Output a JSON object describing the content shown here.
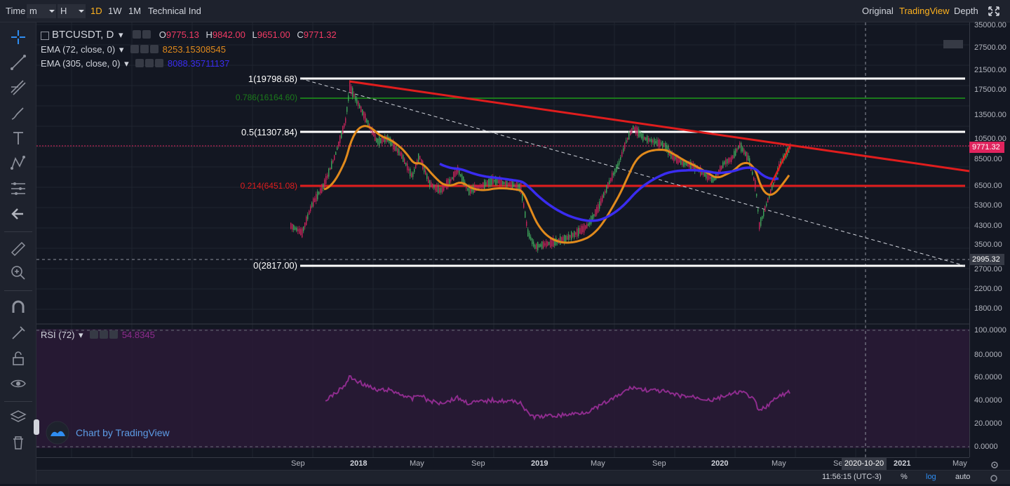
{
  "topbar": {
    "time_label": "Time",
    "minute_select": "m",
    "hour_select": "H",
    "intervals": [
      "1D",
      "1W",
      "1M"
    ],
    "selected_interval": "1D",
    "indicators_button": "Technical Ind",
    "views": [
      "Original",
      "TradingView",
      "Depth"
    ],
    "selected_view": "TradingView"
  },
  "legend": {
    "symbol": "BTCUSDT, D",
    "open_label": "O",
    "open": "9775.13",
    "high_label": "H",
    "high": "9842.00",
    "low_label": "L",
    "low": "9651.00",
    "close_label": "C",
    "close": "9771.32",
    "ema1_name": "EMA (72, close, 0)",
    "ema1_value": "8253.15308545",
    "ema2_name": "EMA (305, close, 0)",
    "ema2_value": "8088.35711137",
    "rsi_name": "RSI (72)",
    "rsi_value": "54.8345"
  },
  "fib_labels": {
    "level_1": "1(19798.68)",
    "level_786": "0.786(16164.60)",
    "level_5": "0.5(11307.84)",
    "level_214": "0.214(6451.08)",
    "level_0": "0(2817.00)"
  },
  "price_axis": [
    "35000.00",
    "27500.00",
    "21500.00",
    "17500.00",
    "13500.00",
    "10500.00",
    "8500.00",
    "6500.00",
    "5300.00",
    "4300.00",
    "3500.00",
    "2700.00",
    "2200.00",
    "1800.00"
  ],
  "price_badges": {
    "last": "9771.32",
    "crosshair": "2995.32"
  },
  "rsi_axis": [
    "100.0000",
    "80.0000",
    "60.0000",
    "40.0000",
    "20.0000",
    "0.0000"
  ],
  "time_axis": [
    "Sep",
    "2018",
    "May",
    "Sep",
    "2019",
    "May",
    "Sep",
    "2020",
    "May",
    "Se",
    "2021",
    "May"
  ],
  "time_badge": "2020-10-20",
  "watermark": "Chart by TradingView",
  "footer": {
    "clock": "11:56:15 (UTC-3)",
    "percent": "%",
    "log": "log",
    "auto": "auto"
  },
  "colors": {
    "background": "#131722",
    "fib_white": "#ffffff",
    "fib_green": "#1b7a1b",
    "fib_red": "#e01d1d",
    "trendline": "#e01d1d",
    "ema72": "#e18a1c",
    "ema305": "#3a2cf0",
    "rsi": "#8e2c8e",
    "accent": "#ffb21e",
    "open_high_low_close": "#f23a64"
  }
}
